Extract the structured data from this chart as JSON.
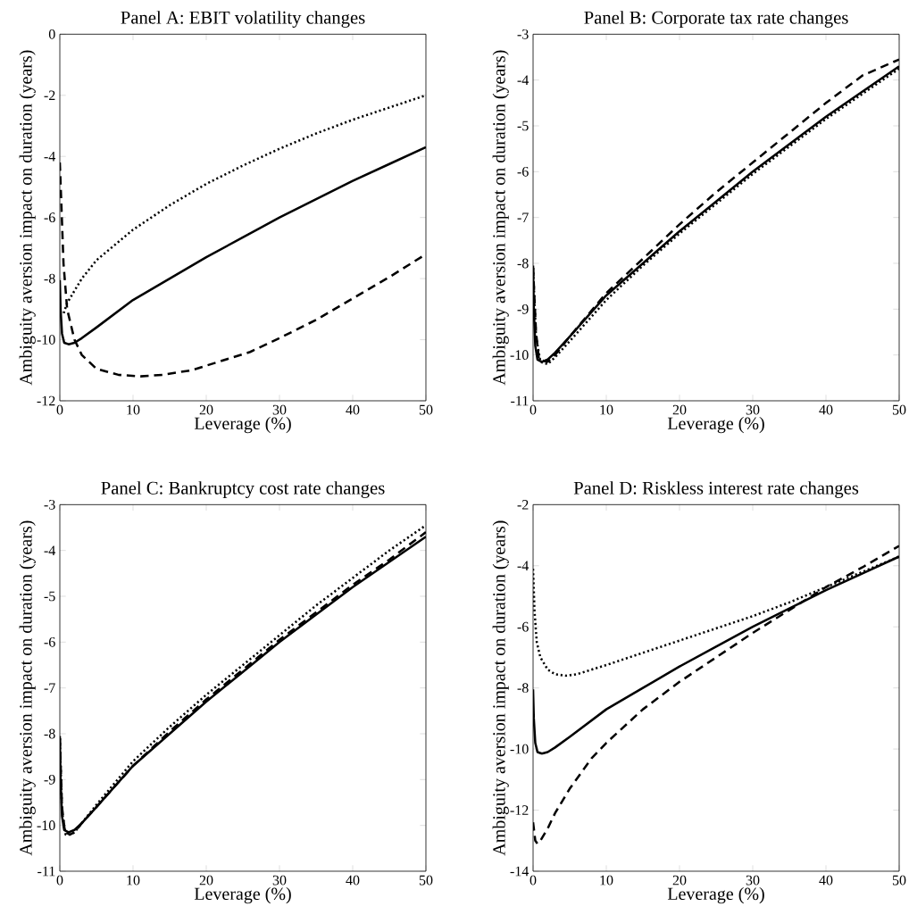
{
  "chart_data": [
    {
      "type": "line",
      "title": "Panel A: EBIT volatility changes",
      "xlabel": "Leverage (%)",
      "ylabel": "Ambiguity aversion impact on duration (years)",
      "xlim": [
        0,
        50
      ],
      "xticks": [
        0,
        10,
        20,
        30,
        40,
        50
      ],
      "ylim": [
        -12,
        0
      ],
      "yticks": [
        -12,
        -10,
        -8,
        -6,
        -4,
        -2,
        0
      ],
      "grid": false,
      "series": [
        {
          "color": "#000000",
          "line_style": "solid",
          "x": [
            0,
            0.1,
            0.3,
            0.6,
            1.2,
            2,
            3,
            5,
            10,
            15,
            20,
            25,
            30,
            35,
            40,
            45,
            50
          ],
          "values": [
            -8.05,
            -9.0,
            -9.8,
            -10.1,
            -10.15,
            -10.1,
            -9.95,
            -9.6,
            -8.7,
            -8.0,
            -7.3,
            -6.65,
            -6.0,
            -5.4,
            -4.8,
            -4.25,
            -3.7
          ]
        },
        {
          "color": "#000000",
          "line_style": "dashed",
          "x": [
            0,
            0.2,
            0.5,
            1,
            2,
            3,
            5,
            8,
            11,
            14,
            18,
            22,
            26,
            30,
            35,
            40,
            45,
            50
          ],
          "values": [
            -4.2,
            -5.5,
            -7.5,
            -9.0,
            -10.0,
            -10.5,
            -10.95,
            -11.15,
            -11.2,
            -11.15,
            -11.0,
            -10.7,
            -10.4,
            -9.95,
            -9.35,
            -8.65,
            -7.95,
            -7.2
          ]
        },
        {
          "color": "#000000",
          "line_style": "dotted",
          "x": [
            0,
            0.5,
            1,
            2,
            3,
            5,
            8,
            10,
            15,
            20,
            25,
            30,
            35,
            40,
            45,
            50
          ],
          "values": [
            -9.1,
            -9.15,
            -8.8,
            -8.4,
            -8.0,
            -7.4,
            -6.8,
            -6.4,
            -5.6,
            -4.9,
            -4.3,
            -3.75,
            -3.25,
            -2.8,
            -2.4,
            -2.0
          ]
        }
      ]
    },
    {
      "type": "line",
      "title": "Panel B: Corporate tax rate changes",
      "xlabel": "Leverage (%)",
      "ylabel": "Ambiguity aversion impact on duration (years)",
      "xlim": [
        0,
        50
      ],
      "xticks": [
        0,
        10,
        20,
        30,
        40,
        50
      ],
      "ylim": [
        -11,
        -3
      ],
      "yticks": [
        -11,
        -10,
        -9,
        -8,
        -7,
        -6,
        -5,
        -4,
        -3
      ],
      "grid": false,
      "series": [
        {
          "color": "#000000",
          "line_style": "solid",
          "x": [
            0,
            0.1,
            0.3,
            0.6,
            1.2,
            2,
            3,
            5,
            10,
            15,
            20,
            25,
            30,
            35,
            40,
            45,
            50
          ],
          "values": [
            -8.05,
            -9.0,
            -9.8,
            -10.1,
            -10.15,
            -10.1,
            -9.95,
            -9.6,
            -8.7,
            -8.0,
            -7.3,
            -6.65,
            -6.0,
            -5.4,
            -4.8,
            -4.25,
            -3.7
          ]
        },
        {
          "color": "#000000",
          "line_style": "dashed",
          "x": [
            0,
            0.4,
            0.8,
            2,
            3,
            5,
            10,
            15,
            20,
            25,
            30,
            35,
            40,
            45,
            50
          ],
          "values": [
            -8.1,
            -9.5,
            -10.1,
            -10.15,
            -10.0,
            -9.6,
            -8.65,
            -7.9,
            -7.15,
            -6.45,
            -5.8,
            -5.15,
            -4.5,
            -3.9,
            -3.55
          ]
        },
        {
          "color": "#000000",
          "line_style": "dotted",
          "x": [
            0,
            0.4,
            1,
            2,
            3,
            5,
            10,
            15,
            20,
            25,
            30,
            35,
            40,
            45,
            50
          ],
          "values": [
            -8.1,
            -9.6,
            -10.15,
            -10.2,
            -10.05,
            -9.7,
            -8.8,
            -8.05,
            -7.35,
            -6.7,
            -6.05,
            -5.45,
            -4.85,
            -4.3,
            -3.75
          ]
        }
      ]
    },
    {
      "type": "line",
      "title": "Panel C: Bankruptcy cost rate changes",
      "xlabel": "Leverage (%)",
      "ylabel": "Ambiguity aversion impact on duration (years)",
      "xlim": [
        0,
        50
      ],
      "xticks": [
        0,
        10,
        20,
        30,
        40,
        50
      ],
      "ylim": [
        -11,
        -3
      ],
      "yticks": [
        -11,
        -10,
        -9,
        -8,
        -7,
        -6,
        -5,
        -4,
        -3
      ],
      "grid": false,
      "series": [
        {
          "color": "#000000",
          "line_style": "solid",
          "x": [
            0,
            0.1,
            0.3,
            0.6,
            1.2,
            2,
            3,
            5,
            10,
            15,
            20,
            25,
            30,
            35,
            40,
            45,
            50
          ],
          "values": [
            -8.05,
            -9.0,
            -9.8,
            -10.1,
            -10.15,
            -10.1,
            -9.95,
            -9.6,
            -8.7,
            -8.0,
            -7.3,
            -6.65,
            -6.0,
            -5.4,
            -4.8,
            -4.25,
            -3.7
          ]
        },
        {
          "color": "#000000",
          "line_style": "dashed",
          "x": [
            0,
            0.3,
            0.7,
            1.4,
            2,
            3,
            5,
            10,
            15,
            20,
            25,
            30,
            35,
            40,
            45,
            50
          ],
          "values": [
            -8.1,
            -9.6,
            -10.15,
            -10.2,
            -10.15,
            -9.95,
            -9.6,
            -8.7,
            -7.95,
            -7.25,
            -6.6,
            -5.95,
            -5.35,
            -4.75,
            -4.2,
            -3.6
          ]
        },
        {
          "color": "#000000",
          "line_style": "dotted",
          "x": [
            0,
            0.3,
            0.8,
            1.5,
            2,
            3,
            5,
            10,
            15,
            20,
            25,
            30,
            35,
            40,
            45,
            50
          ],
          "values": [
            -8.1,
            -9.7,
            -10.2,
            -10.2,
            -10.15,
            -9.95,
            -9.55,
            -8.6,
            -7.85,
            -7.15,
            -6.5,
            -5.85,
            -5.2,
            -4.6,
            -4.0,
            -3.45
          ]
        }
      ]
    },
    {
      "type": "line",
      "title": "Panel D: Riskless interest rate changes",
      "xlabel": "Leverage (%)",
      "ylabel": "Ambiguity aversion impact on duration (years)",
      "xlim": [
        0,
        50
      ],
      "xticks": [
        0,
        10,
        20,
        30,
        40,
        50
      ],
      "ylim": [
        -14,
        -2
      ],
      "yticks": [
        -14,
        -12,
        -10,
        -8,
        -6,
        -4,
        -2
      ],
      "grid": false,
      "series": [
        {
          "color": "#000000",
          "line_style": "solid",
          "x": [
            0,
            0.1,
            0.3,
            0.6,
            1.2,
            2,
            3,
            5,
            10,
            15,
            20,
            25,
            30,
            35,
            40,
            45,
            50
          ],
          "values": [
            -8.05,
            -9.0,
            -9.8,
            -10.1,
            -10.15,
            -10.1,
            -9.95,
            -9.6,
            -8.7,
            -8.0,
            -7.3,
            -6.65,
            -6.0,
            -5.4,
            -4.8,
            -4.25,
            -3.7
          ]
        },
        {
          "color": "#000000",
          "line_style": "dashed",
          "x": [
            0,
            0.3,
            0.6,
            1,
            2,
            3,
            5,
            8,
            10,
            15,
            20,
            25,
            30,
            35,
            40,
            45,
            50
          ],
          "values": [
            -12.4,
            -13.0,
            -13.1,
            -13.0,
            -12.6,
            -12.1,
            -11.3,
            -10.3,
            -9.8,
            -8.7,
            -7.8,
            -7.0,
            -6.2,
            -5.45,
            -4.7,
            -4.05,
            -3.35
          ]
        },
        {
          "color": "#000000",
          "line_style": "dotted",
          "x": [
            0,
            0.2,
            0.5,
            1,
            2,
            3,
            4.5,
            6,
            8,
            10,
            15,
            20,
            25,
            30,
            35,
            40,
            45,
            50
          ],
          "values": [
            -4.1,
            -5.5,
            -6.5,
            -7.0,
            -7.4,
            -7.55,
            -7.6,
            -7.55,
            -7.4,
            -7.25,
            -6.85,
            -6.45,
            -6.05,
            -5.65,
            -5.2,
            -4.7,
            -4.2,
            -3.7
          ]
        }
      ]
    }
  ]
}
